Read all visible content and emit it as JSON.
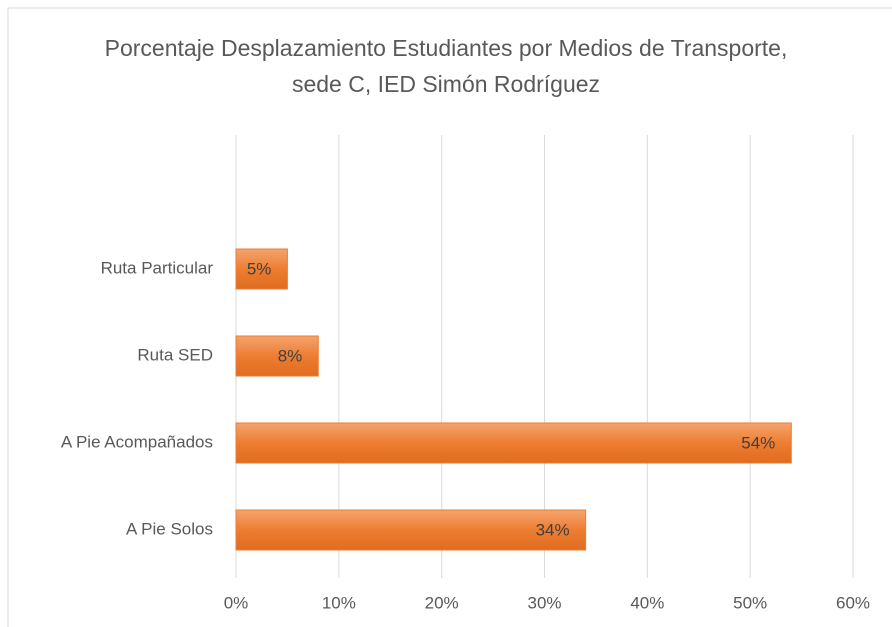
{
  "chart_data": {
    "type": "hbar",
    "title": "Porcentaje Desplazamiento Estudiantes por Medios de Transporte, sede C, IED Simón Rodríguez",
    "categories": [
      "Ruta Particular",
      "Ruta SED",
      "A Pie Acompañados",
      "A Pie Solos"
    ],
    "values": [
      5,
      8,
      54,
      34
    ],
    "value_labels": [
      "5%",
      "8%",
      "54%",
      "34%"
    ],
    "color": "#ed7d31",
    "xlim": [
      0,
      60
    ],
    "xticks": [
      {
        "value": 0,
        "label": "0%"
      },
      {
        "value": 10,
        "label": "10%"
      },
      {
        "value": 20,
        "label": "20%"
      },
      {
        "value": 30,
        "label": "30%"
      },
      {
        "value": 40,
        "label": "40%"
      },
      {
        "value": 50,
        "label": "50%"
      },
      {
        "value": 60,
        "label": "60%"
      }
    ],
    "grid": true
  }
}
